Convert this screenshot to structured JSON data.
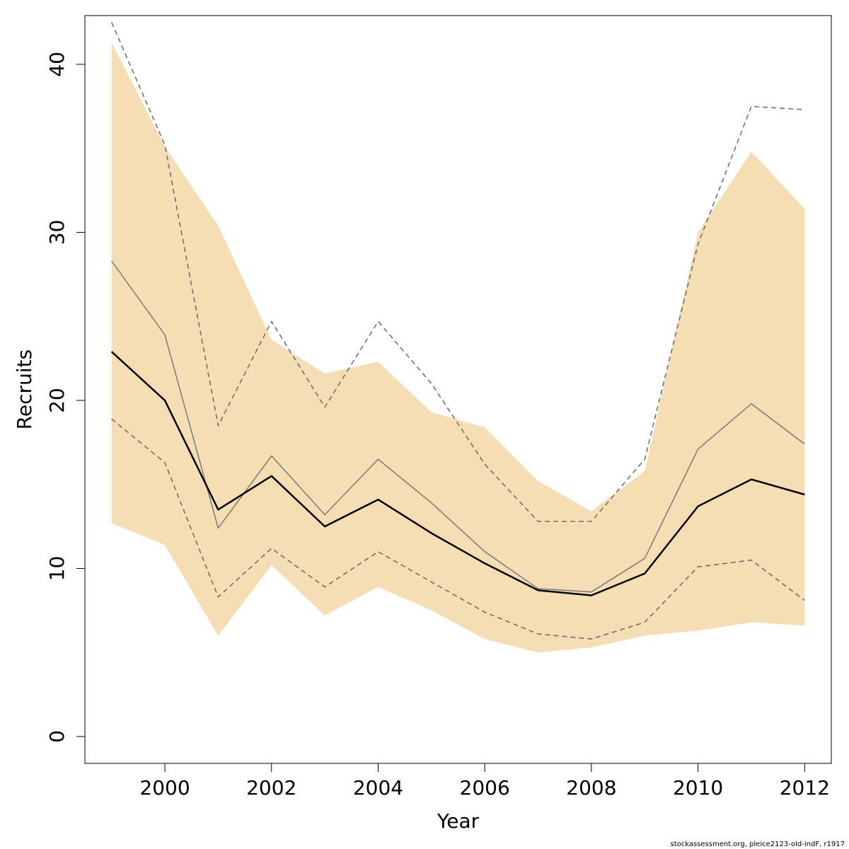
{
  "chart_data": {
    "type": "line",
    "title": "",
    "xlabel": "Year",
    "ylabel": "Recruits",
    "xlim": [
      1998.5,
      2012.5
    ],
    "ylim": [
      -1.6,
      42.9
    ],
    "xticks": [
      2000,
      2002,
      2004,
      2006,
      2008,
      2010,
      2012
    ],
    "yticks": [
      0,
      10,
      20,
      30,
      40
    ],
    "grid": false,
    "legend": "none",
    "x": [
      1999,
      2000,
      2001,
      2002,
      2003,
      2004,
      2005,
      2006,
      2007,
      2008,
      2009,
      2010,
      2011,
      2012
    ],
    "band": {
      "lower": [
        12.7,
        11.4,
        6.0,
        10.2,
        7.2,
        8.9,
        7.5,
        5.8,
        5.0,
        5.3,
        6.0,
        6.3,
        6.8,
        6.6
      ],
      "upper": [
        41.3,
        35.1,
        30.4,
        23.6,
        21.6,
        22.3,
        19.3,
        18.4,
        15.2,
        13.4,
        15.8,
        30.0,
        34.8,
        31.4
      ],
      "color": "#f5deb3"
    },
    "series": [
      {
        "style": "solid-thick",
        "color": "#000000",
        "values": [
          22.9,
          20.0,
          13.5,
          15.5,
          12.5,
          14.1,
          12.1,
          10.3,
          8.7,
          8.4,
          9.7,
          13.7,
          15.3,
          14.4
        ]
      },
      {
        "style": "solid-thin",
        "color": "#7f7f7f",
        "values": [
          28.3,
          23.9,
          12.4,
          16.7,
          13.2,
          16.5,
          13.9,
          11.0,
          8.8,
          8.6,
          10.6,
          17.1,
          19.8,
          17.4
        ]
      },
      {
        "style": "dashed",
        "color": "#707070",
        "values": [
          42.5,
          35.2,
          18.5,
          24.7,
          19.6,
          24.7,
          21.0,
          16.2,
          12.8,
          12.8,
          16.5,
          29.3,
          37.5,
          37.3
        ]
      },
      {
        "style": "dashed",
        "color": "#707070",
        "values": [
          18.9,
          16.3,
          8.3,
          11.2,
          8.9,
          11.0,
          9.2,
          7.4,
          6.1,
          5.8,
          6.8,
          10.1,
          10.5,
          8.1
        ]
      }
    ]
  },
  "footer": "stockassessment.org, pleice2123-old-indF, r1917"
}
